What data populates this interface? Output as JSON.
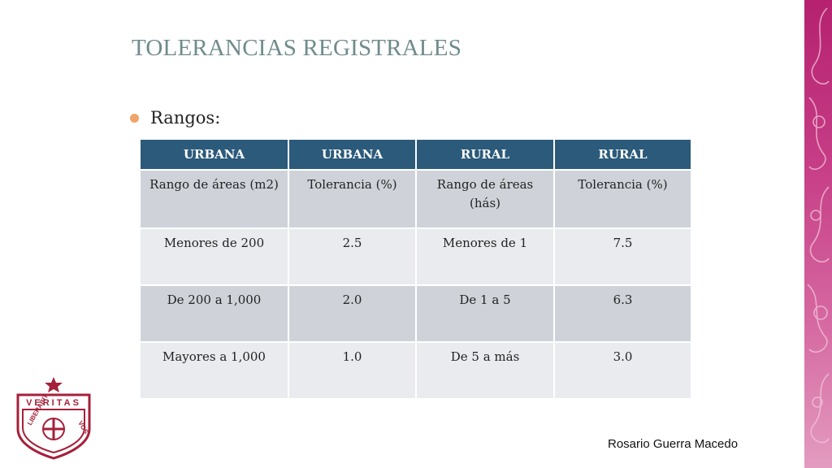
{
  "slide": {
    "title": "TOLERANCIAS REGISTRALES",
    "bullet": "Rangos:",
    "footer": "Rosario Guerra Macedo"
  },
  "table": {
    "headers": [
      "URBANA",
      "URBANA",
      "RURAL",
      "RURAL"
    ],
    "rows": [
      [
        "Rango de áreas (m2)",
        "Tolerancia (%)",
        "Rango de áreas (hás)",
        "Tolerancia (%)"
      ],
      [
        "Menores de 200",
        "2.5",
        "Menores de 1",
        "7.5"
      ],
      [
        "De 200 a 1,000",
        "2.0",
        "De 1 a 5",
        "6.3"
      ],
      [
        "Mayores a 1,000",
        "1.0",
        "De 5 a más",
        "3.0"
      ]
    ]
  },
  "logo": {
    "top_text": "VERITAS",
    "left_text": "LIBERABIT",
    "right_text": "VOS",
    "color": "#a5203a"
  },
  "colors": {
    "title": "#6f8b8d",
    "header_bg": "#2b5a7a",
    "row_dark": "#cfd3d9",
    "row_light": "#e9ebee",
    "bullet": "#f0a46a",
    "side_band": "#c63d86"
  }
}
